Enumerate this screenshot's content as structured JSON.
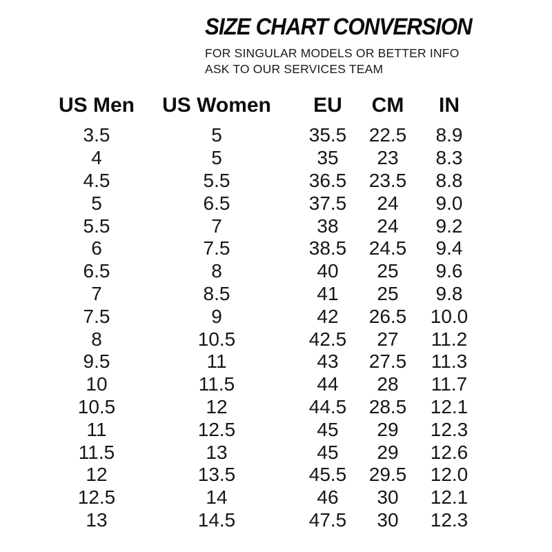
{
  "header": {
    "title": "SIZE CHART CONVERSION",
    "subtitle_line1": "FOR SINGULAR MODELS OR BETTER INFO",
    "subtitle_line2": "ASK TO OUR SERVICES TEAM"
  },
  "table": {
    "columns": [
      "US Men",
      "US Women",
      "EU",
      "CM",
      "IN"
    ],
    "rows": [
      [
        "3.5",
        "5",
        "35.5",
        "22.5",
        "8.9"
      ],
      [
        "4",
        "5",
        "35",
        "23",
        "8.3"
      ],
      [
        "4.5",
        "5.5",
        "36.5",
        "23.5",
        "8.8"
      ],
      [
        "5",
        "6.5",
        "37.5",
        "24",
        "9.0"
      ],
      [
        "5.5",
        "7",
        "38",
        "24",
        "9.2"
      ],
      [
        "6",
        "7.5",
        "38.5",
        "24.5",
        "9.4"
      ],
      [
        "6.5",
        "8",
        "40",
        "25",
        "9.6"
      ],
      [
        "7",
        "8.5",
        "41",
        "25",
        "9.8"
      ],
      [
        "7.5",
        "9",
        "42",
        "26.5",
        "10.0"
      ],
      [
        "8",
        "10.5",
        "42.5",
        "27",
        "11.2"
      ],
      [
        "9.5",
        "11",
        "43",
        "27.5",
        "11.3"
      ],
      [
        "10",
        "11.5",
        "44",
        "28",
        "11.7"
      ],
      [
        "10.5",
        "12",
        "44.5",
        "28.5",
        "12.1"
      ],
      [
        "11",
        "12.5",
        "45",
        "29",
        "12.3"
      ],
      [
        "11.5",
        "13",
        "45",
        "29",
        "12.6"
      ],
      [
        "12",
        "13.5",
        "45.5",
        "29.5",
        "12.0"
      ],
      [
        "12.5",
        "14",
        "46",
        "30",
        "12.1"
      ],
      [
        "13",
        "14.5",
        "47.5",
        "30",
        "12.3"
      ]
    ]
  },
  "colors": {
    "text": "#141414",
    "background": "#ffffff"
  }
}
